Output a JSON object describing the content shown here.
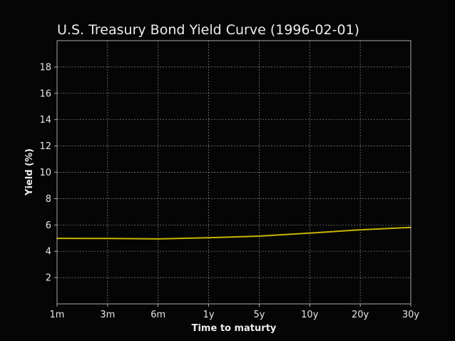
{
  "chart_data": {
    "type": "line",
    "title": "U.S. Treasury Bond Yield Curve (1996-02-01)",
    "xlabel": "Time to maturty",
    "ylabel": "Yield (%)",
    "categories": [
      "1m",
      "3m",
      "6m",
      "1y",
      "5y",
      "10y",
      "20y",
      "30y"
    ],
    "series": [
      {
        "values": [
          4.98,
          4.97,
          4.94,
          5.03,
          5.15,
          5.38,
          5.63,
          5.81
        ],
        "color": "#c8b400"
      }
    ],
    "ylim": [
      0,
      20
    ],
    "yticks": [
      2,
      4,
      6,
      8,
      10,
      12,
      14,
      16,
      18
    ],
    "grid": true,
    "legend": "none",
    "colors": {
      "background": "#050505",
      "line": "#c8b400",
      "grid": "#8a8a8a",
      "text": "#ececec"
    }
  }
}
